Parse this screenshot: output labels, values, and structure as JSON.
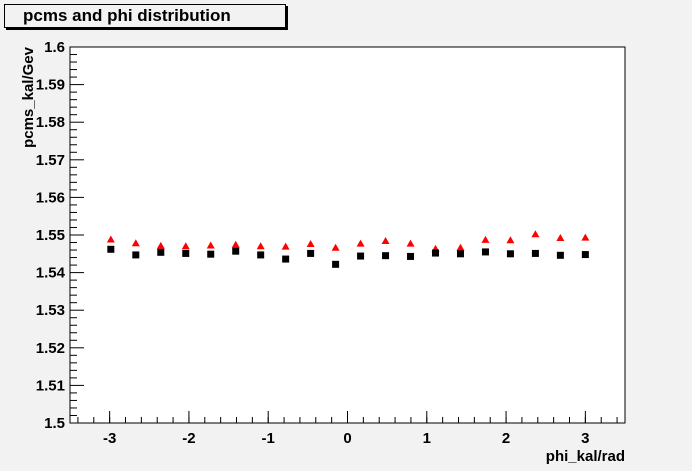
{
  "chart_data": {
    "type": "scatter",
    "title": "pcms and phi distribution",
    "xlabel": "phi_kal/rad",
    "ylabel": "pcms_kal/Gev",
    "xlim": [
      -3.5,
      3.5
    ],
    "ylim": [
      1.5,
      1.6
    ],
    "x_ticks": [
      -3,
      -2,
      -1,
      0,
      1,
      2,
      3
    ],
    "x_tick_labels": [
      "-3",
      "-2",
      "-1",
      "0",
      "1",
      "2",
      "3"
    ],
    "y_ticks": [
      1.5,
      1.51,
      1.52,
      1.53,
      1.54,
      1.55,
      1.56,
      1.57,
      1.58,
      1.59,
      1.6
    ],
    "y_tick_labels": [
      "1.5",
      "1.51",
      "1.52",
      "1.53",
      "1.54",
      "1.55",
      "1.56",
      "1.57",
      "1.58",
      "1.59",
      "1.6"
    ],
    "grid": false,
    "x": [
      -2.985,
      -2.67,
      -2.355,
      -2.04,
      -1.725,
      -1.41,
      -1.095,
      -0.78,
      -0.465,
      -0.15,
      0.165,
      0.48,
      0.795,
      1.11,
      1.425,
      1.74,
      2.055,
      2.37,
      2.685,
      3.0
    ],
    "series": [
      {
        "marker": "triangle",
        "color": "#ff0000",
        "values": [
          1.5488,
          1.5478,
          1.5471,
          1.547,
          1.5472,
          1.5474,
          1.547,
          1.5469,
          1.5476,
          1.5466,
          1.5477,
          1.5484,
          1.5477,
          1.5463,
          1.5466,
          1.5487,
          1.5486,
          1.5502,
          1.5492,
          1.5493
        ]
      },
      {
        "marker": "square",
        "color": "#000000",
        "values": [
          1.5462,
          1.5447,
          1.5454,
          1.5451,
          1.5449,
          1.5457,
          1.5447,
          1.5436,
          1.5451,
          1.5422,
          1.5444,
          1.5445,
          1.5443,
          1.5452,
          1.545,
          1.5455,
          1.545,
          1.5451,
          1.5446,
          1.5448
        ]
      }
    ]
  }
}
